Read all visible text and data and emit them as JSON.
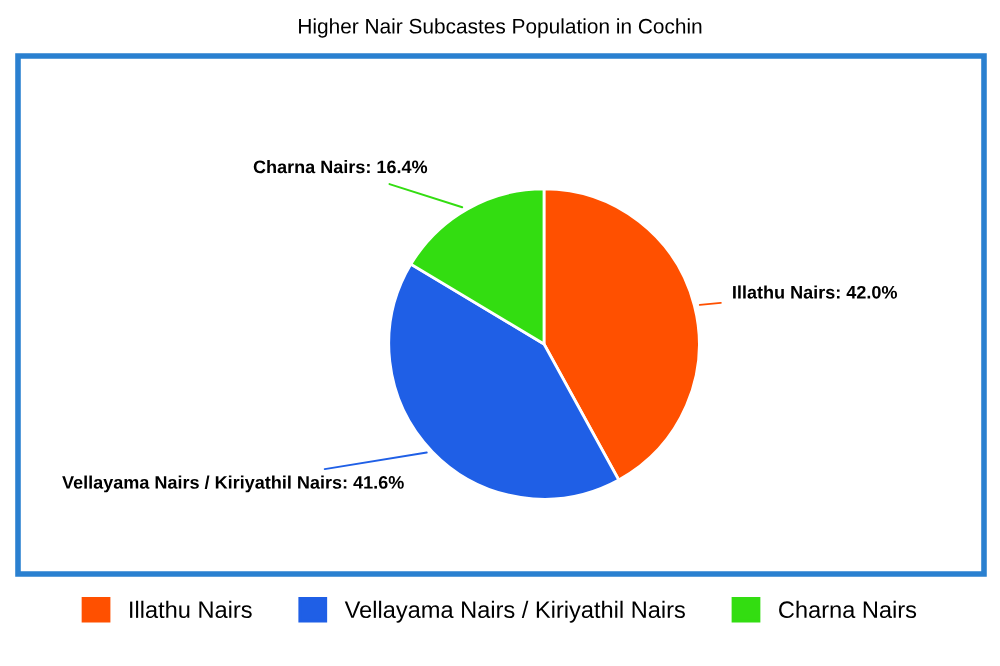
{
  "chart_data": {
    "type": "pie",
    "title": "Higher Nair Subcastes Population in Cochin",
    "categories": [
      "Illathu Nairs",
      "Vellayama Nairs / Kiriyathil Nairs",
      "Charna Nairs"
    ],
    "values": [
      42.0,
      41.6,
      16.4
    ],
    "colors": [
      "#ff5000",
      "#1f5fe6",
      "#33dd11"
    ],
    "value_labels": [
      "Illathu Nairs: 42.0%",
      "Vellayama Nairs / Kiriyathil Nairs: 41.6%",
      "Charna Nairs: 16.4%"
    ],
    "legend": "bottom"
  }
}
